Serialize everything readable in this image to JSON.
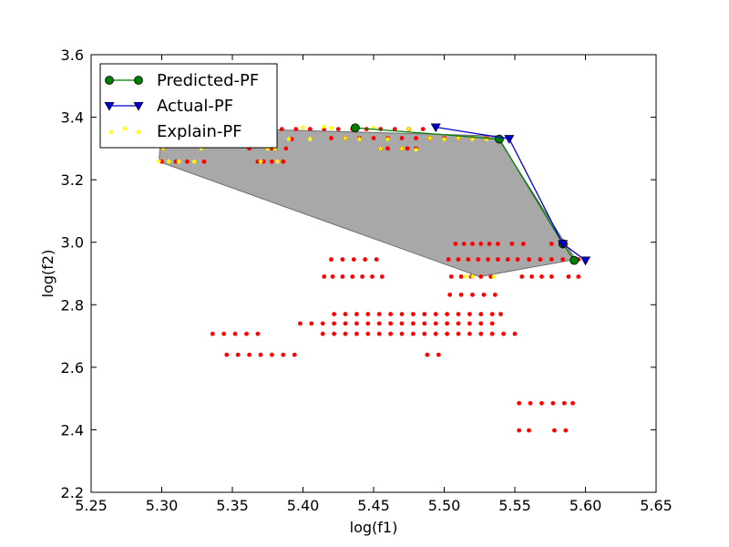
{
  "chart_data": {
    "type": "scatter",
    "title": "",
    "xlabel": "log(f1)",
    "ylabel": "log(f2)",
    "xlim": [
      5.25,
      5.65
    ],
    "ylim": [
      2.2,
      3.6
    ],
    "xticks": [
      "5.25",
      "5.30",
      "5.35",
      "5.40",
      "5.45",
      "5.50",
      "5.55",
      "5.60",
      "5.65"
    ],
    "yticks": [
      "2.2",
      "2.4",
      "2.6",
      "2.8",
      "3.0",
      "3.2",
      "3.4",
      "3.6"
    ],
    "grid": false,
    "legend_position": "top-left",
    "colors": {
      "predicted": "#007f00",
      "actual": "#0000cc",
      "explain": "#ffff00",
      "scatter": "#ff0000",
      "hull": "#a8a8a8"
    },
    "series": [
      {
        "name": "Predicted-PF",
        "kind": "line-marker",
        "marker": "circle",
        "points": [
          [
            5.437,
            3.366
          ],
          [
            5.539,
            3.33
          ],
          [
            5.584,
            2.995
          ],
          [
            5.592,
            2.942
          ]
        ]
      },
      {
        "name": "Actual-PF",
        "kind": "line-marker",
        "marker": "triangle-down",
        "points": [
          [
            5.494,
            3.368
          ],
          [
            5.546,
            3.331
          ],
          [
            5.584,
            2.995
          ],
          [
            5.6,
            2.942
          ]
        ]
      },
      {
        "name": "Explain-PF",
        "kind": "scatter",
        "marker": "star",
        "points": [
          [
            5.298,
            3.258
          ],
          [
            5.301,
            3.3
          ],
          [
            5.305,
            3.258
          ],
          [
            5.312,
            3.258
          ],
          [
            5.323,
            3.258
          ],
          [
            5.328,
            3.3
          ],
          [
            5.34,
            3.33
          ],
          [
            5.345,
            3.333
          ],
          [
            5.357,
            3.362
          ],
          [
            5.37,
            3.258
          ],
          [
            5.375,
            3.3
          ],
          [
            5.38,
            3.3
          ],
          [
            5.382,
            3.258
          ],
          [
            5.39,
            3.33
          ],
          [
            5.4,
            3.366
          ],
          [
            5.405,
            3.33
          ],
          [
            5.415,
            3.37
          ],
          [
            5.42,
            3.366
          ],
          [
            5.43,
            3.333
          ],
          [
            5.44,
            3.33
          ],
          [
            5.45,
            3.366
          ],
          [
            5.455,
            3.3
          ],
          [
            5.46,
            3.33
          ],
          [
            5.47,
            3.3
          ],
          [
            5.475,
            3.362
          ],
          [
            5.48,
            3.296
          ],
          [
            5.49,
            3.333
          ],
          [
            5.5,
            3.33
          ],
          [
            5.51,
            3.333
          ],
          [
            5.52,
            3.33
          ],
          [
            5.53,
            3.33
          ],
          [
            5.535,
            2.89
          ],
          [
            5.515,
            2.89
          ],
          [
            5.52,
            2.89
          ]
        ]
      },
      {
        "name": "",
        "kind": "scatter",
        "marker": "dot",
        "points": [
          [
            5.3,
            3.258
          ],
          [
            5.301,
            3.3
          ],
          [
            5.31,
            3.258
          ],
          [
            5.318,
            3.258
          ],
          [
            5.33,
            3.258
          ],
          [
            5.36,
            3.33
          ],
          [
            5.368,
            3.258
          ],
          [
            5.372,
            3.258
          ],
          [
            5.378,
            3.258
          ],
          [
            5.386,
            3.258
          ],
          [
            5.392,
            3.33
          ],
          [
            5.362,
            3.3
          ],
          [
            5.378,
            3.3
          ],
          [
            5.388,
            3.3
          ],
          [
            5.355,
            3.362
          ],
          [
            5.365,
            3.362
          ],
          [
            5.375,
            3.362
          ],
          [
            5.385,
            3.362
          ],
          [
            5.395,
            3.362
          ],
          [
            5.405,
            3.362
          ],
          [
            5.415,
            3.362
          ],
          [
            5.425,
            3.362
          ],
          [
            5.435,
            3.362
          ],
          [
            5.445,
            3.362
          ],
          [
            5.455,
            3.362
          ],
          [
            5.465,
            3.362
          ],
          [
            5.475,
            3.362
          ],
          [
            5.485,
            3.362
          ],
          [
            5.42,
            3.333
          ],
          [
            5.43,
            3.333
          ],
          [
            5.44,
            3.333
          ],
          [
            5.45,
            3.333
          ],
          [
            5.46,
            3.333
          ],
          [
            5.47,
            3.333
          ],
          [
            5.48,
            3.333
          ],
          [
            5.49,
            3.333
          ],
          [
            5.5,
            3.333
          ],
          [
            5.51,
            3.333
          ],
          [
            5.52,
            3.333
          ],
          [
            5.53,
            3.333
          ],
          [
            5.455,
            3.3
          ],
          [
            5.46,
            3.3
          ],
          [
            5.47,
            3.3
          ],
          [
            5.474,
            3.3
          ],
          [
            5.48,
            3.3
          ],
          [
            5.42,
            2.945
          ],
          [
            5.428,
            2.945
          ],
          [
            5.436,
            2.945
          ],
          [
            5.444,
            2.945
          ],
          [
            5.452,
            2.945
          ],
          [
            5.415,
            2.89
          ],
          [
            5.421,
            2.89
          ],
          [
            5.428,
            2.89
          ],
          [
            5.435,
            2.89
          ],
          [
            5.442,
            2.89
          ],
          [
            5.449,
            2.89
          ],
          [
            5.456,
            2.89
          ],
          [
            5.508,
            2.995
          ],
          [
            5.514,
            2.995
          ],
          [
            5.52,
            2.995
          ],
          [
            5.526,
            2.995
          ],
          [
            5.532,
            2.995
          ],
          [
            5.538,
            2.995
          ],
          [
            5.548,
            2.995
          ],
          [
            5.556,
            2.995
          ],
          [
            5.576,
            2.995
          ],
          [
            5.586,
            2.995
          ],
          [
            5.503,
            2.945
          ],
          [
            5.51,
            2.945
          ],
          [
            5.517,
            2.945
          ],
          [
            5.524,
            2.945
          ],
          [
            5.531,
            2.945
          ],
          [
            5.538,
            2.945
          ],
          [
            5.545,
            2.945
          ],
          [
            5.552,
            2.945
          ],
          [
            5.56,
            2.945
          ],
          [
            5.568,
            2.945
          ],
          [
            5.576,
            2.945
          ],
          [
            5.584,
            2.945
          ],
          [
            5.595,
            2.945
          ],
          [
            5.505,
            2.89
          ],
          [
            5.512,
            2.89
          ],
          [
            5.519,
            2.89
          ],
          [
            5.526,
            2.89
          ],
          [
            5.533,
            2.89
          ],
          [
            5.555,
            2.89
          ],
          [
            5.562,
            2.89
          ],
          [
            5.569,
            2.89
          ],
          [
            5.576,
            2.89
          ],
          [
            5.588,
            2.89
          ],
          [
            5.595,
            2.89
          ],
          [
            5.504,
            2.832
          ],
          [
            5.512,
            2.832
          ],
          [
            5.52,
            2.832
          ],
          [
            5.528,
            2.832
          ],
          [
            5.536,
            2.832
          ],
          [
            5.422,
            2.77
          ],
          [
            5.43,
            2.77
          ],
          [
            5.438,
            2.77
          ],
          [
            5.446,
            2.77
          ],
          [
            5.454,
            2.77
          ],
          [
            5.462,
            2.77
          ],
          [
            5.47,
            2.77
          ],
          [
            5.478,
            2.77
          ],
          [
            5.486,
            2.77
          ],
          [
            5.494,
            2.77
          ],
          [
            5.502,
            2.77
          ],
          [
            5.51,
            2.77
          ],
          [
            5.518,
            2.77
          ],
          [
            5.526,
            2.77
          ],
          [
            5.534,
            2.77
          ],
          [
            5.54,
            2.77
          ],
          [
            5.398,
            2.74
          ],
          [
            5.406,
            2.74
          ],
          [
            5.414,
            2.74
          ],
          [
            5.422,
            2.74
          ],
          [
            5.43,
            2.74
          ],
          [
            5.438,
            2.74
          ],
          [
            5.446,
            2.74
          ],
          [
            5.454,
            2.74
          ],
          [
            5.462,
            2.74
          ],
          [
            5.47,
            2.74
          ],
          [
            5.478,
            2.74
          ],
          [
            5.486,
            2.74
          ],
          [
            5.494,
            2.74
          ],
          [
            5.502,
            2.74
          ],
          [
            5.51,
            2.74
          ],
          [
            5.518,
            2.74
          ],
          [
            5.526,
            2.74
          ],
          [
            5.534,
            2.74
          ],
          [
            5.414,
            2.707
          ],
          [
            5.422,
            2.707
          ],
          [
            5.43,
            2.707
          ],
          [
            5.438,
            2.707
          ],
          [
            5.446,
            2.707
          ],
          [
            5.454,
            2.707
          ],
          [
            5.462,
            2.707
          ],
          [
            5.47,
            2.707
          ],
          [
            5.478,
            2.707
          ],
          [
            5.486,
            2.707
          ],
          [
            5.494,
            2.707
          ],
          [
            5.502,
            2.707
          ],
          [
            5.51,
            2.707
          ],
          [
            5.518,
            2.707
          ],
          [
            5.526,
            2.707
          ],
          [
            5.534,
            2.707
          ],
          [
            5.542,
            2.707
          ],
          [
            5.55,
            2.707
          ],
          [
            5.336,
            2.707
          ],
          [
            5.344,
            2.707
          ],
          [
            5.352,
            2.707
          ],
          [
            5.36,
            2.707
          ],
          [
            5.368,
            2.707
          ],
          [
            5.346,
            2.64
          ],
          [
            5.354,
            2.64
          ],
          [
            5.362,
            2.64
          ],
          [
            5.37,
            2.64
          ],
          [
            5.378,
            2.64
          ],
          [
            5.386,
            2.64
          ],
          [
            5.394,
            2.64
          ],
          [
            5.488,
            2.64
          ],
          [
            5.496,
            2.64
          ],
          [
            5.553,
            2.485
          ],
          [
            5.561,
            2.485
          ],
          [
            5.569,
            2.485
          ],
          [
            5.577,
            2.485
          ],
          [
            5.585,
            2.485
          ],
          [
            5.591,
            2.485
          ],
          [
            5.553,
            2.398
          ],
          [
            5.56,
            2.398
          ],
          [
            5.578,
            2.398
          ],
          [
            5.586,
            2.398
          ]
        ]
      }
    ],
    "hull": [
      [
        5.298,
        3.258
      ],
      [
        5.3,
        3.37
      ],
      [
        5.537,
        3.34
      ],
      [
        5.593,
        2.945
      ],
      [
        5.525,
        2.89
      ]
    ]
  }
}
